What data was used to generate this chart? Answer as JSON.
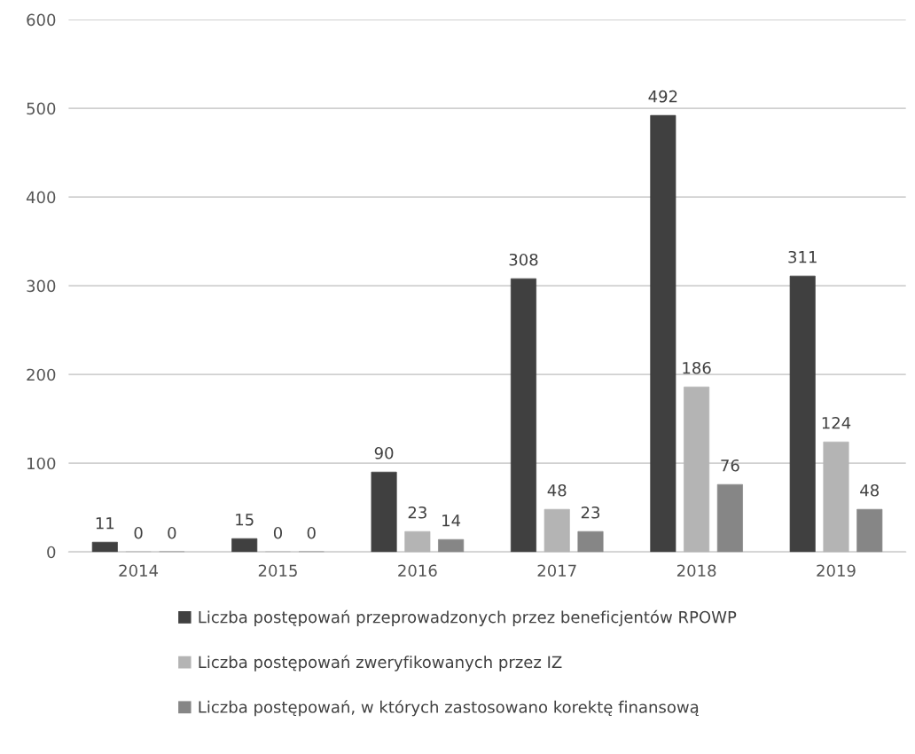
{
  "chart_data": {
    "type": "bar",
    "categories": [
      "2014",
      "2015",
      "2016",
      "2017",
      "2018",
      "2019"
    ],
    "series": [
      {
        "name": "Liczba postępowań przeprowadzonych przez beneficjentów RPOWP",
        "color": "#404040",
        "values": [
          11,
          15,
          90,
          308,
          492,
          311
        ]
      },
      {
        "name": "Liczba postępowań zweryfikowanych przez IZ",
        "color": "#b4b4b4",
        "values": [
          0,
          0,
          23,
          48,
          186,
          124
        ]
      },
      {
        "name": "Liczba postępowań, w których zastosowano korektę finansową",
        "color": "#868686",
        "values": [
          0,
          0,
          14,
          23,
          76,
          48
        ]
      }
    ],
    "ylim": [
      0,
      600
    ],
    "yticks": [
      0,
      100,
      200,
      300,
      400,
      500,
      600
    ],
    "grid": "y",
    "legend": "bottom",
    "data_labels": true
  }
}
